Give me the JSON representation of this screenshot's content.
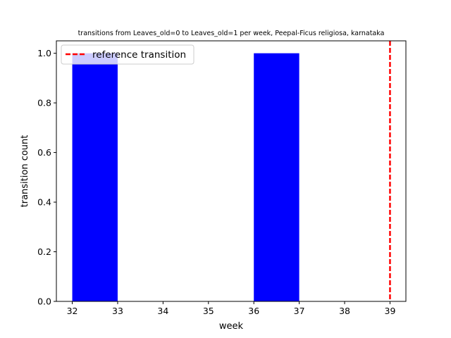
{
  "chart_data": {
    "type": "bar",
    "title": "transitions from Leaves_old=0 to Leaves_old=1 per week, Peepal-Ficus religiosa, karnataka",
    "xlabel": "week",
    "ylabel": "transition count",
    "xlim": [
      31.65,
      39.35
    ],
    "ylim": [
      0,
      1.05
    ],
    "xticks": [
      32,
      33,
      34,
      35,
      36,
      37,
      38,
      39
    ],
    "yticks": [
      0.0,
      0.2,
      0.4,
      0.6,
      0.8,
      1.0
    ],
    "ytick_labels": [
      "0.0",
      "0.2",
      "0.4",
      "0.6",
      "0.8",
      "1.0"
    ],
    "bars": [
      {
        "x_start": 32,
        "x_end": 33,
        "value": 1
      },
      {
        "x_start": 36,
        "x_end": 37,
        "value": 1
      }
    ],
    "bar_color": "#0000ff",
    "reference_line": {
      "x": 39,
      "label": "reference transition",
      "color": "#ff0000",
      "style": "dashed"
    },
    "legend_position": "upper-left",
    "grid": false
  }
}
